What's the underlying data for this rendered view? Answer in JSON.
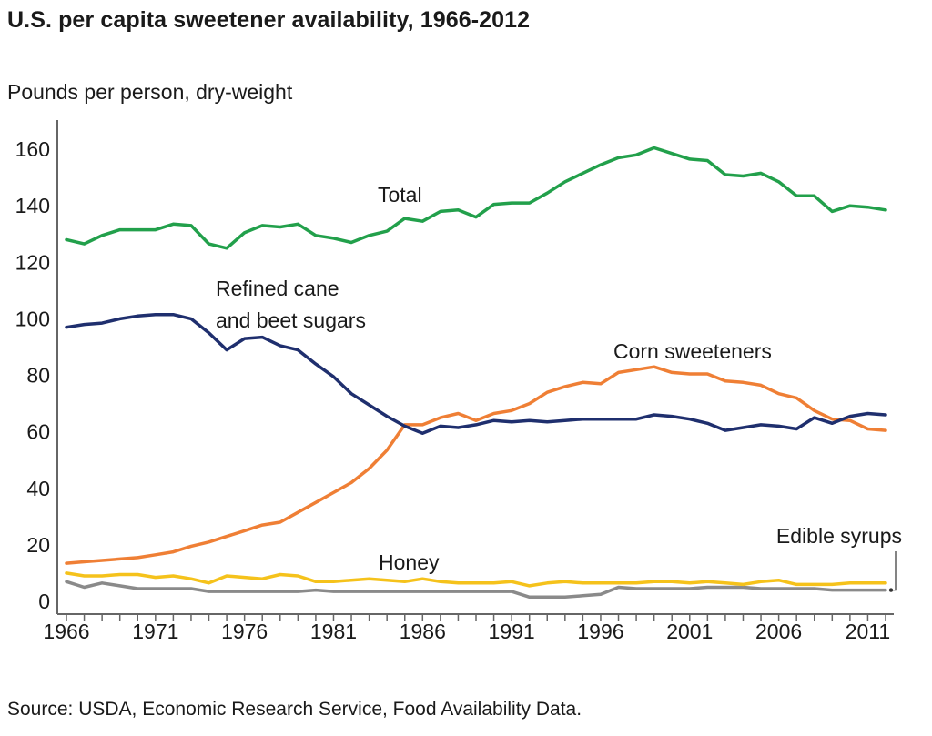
{
  "chart_data": {
    "type": "line",
    "title": "U.S. per capita sweetener availability, 1966-2012",
    "ylabel": "Pounds per person, dry-weight",
    "xlabel": "",
    "source": "Source: USDA, Economic Research Service, Food Availability Data.",
    "xlim": [
      1966,
      2012
    ],
    "ylim": [
      0,
      170
    ],
    "x_ticks": [
      1966,
      1971,
      1976,
      1981,
      1986,
      1991,
      1996,
      2001,
      2006,
      2011
    ],
    "y_ticks": [
      0,
      20,
      40,
      60,
      80,
      100,
      120,
      140,
      160
    ],
    "grid": false,
    "legend": "inline-labels",
    "x": [
      1966,
      1967,
      1968,
      1969,
      1970,
      1971,
      1972,
      1973,
      1974,
      1975,
      1976,
      1977,
      1978,
      1979,
      1980,
      1981,
      1982,
      1983,
      1984,
      1985,
      1986,
      1987,
      1988,
      1989,
      1990,
      1991,
      1992,
      1993,
      1994,
      1995,
      1996,
      1997,
      1998,
      1999,
      2000,
      2001,
      2002,
      2003,
      2004,
      2005,
      2006,
      2007,
      2008,
      2009,
      2010,
      2011,
      2012
    ],
    "series": [
      {
        "name": "Total",
        "color": "#22a04b",
        "label": "Total",
        "values": [
          128,
          126.5,
          129.5,
          131.5,
          131.5,
          131.5,
          133.5,
          133,
          126.5,
          125,
          130.5,
          133,
          132.5,
          133.5,
          129.5,
          128.5,
          127,
          129.5,
          131,
          135.5,
          134.5,
          138,
          138.5,
          136,
          140.5,
          141,
          141,
          144.5,
          148.5,
          151.5,
          154.5,
          157,
          158,
          160.5,
          158.5,
          156.5,
          156,
          151,
          150.5,
          151.5,
          148.5,
          143.5,
          143.5,
          138,
          140,
          139.5,
          138.5
        ]
      },
      {
        "name": "Refined cane and beet sugars",
        "color": "#1f2f6e",
        "label_lines": [
          "Refined cane",
          "and beet sugars"
        ],
        "values": [
          97,
          98,
          98.5,
          100,
          101,
          101.5,
          101.5,
          100,
          95,
          89,
          93,
          93.5,
          90.5,
          89,
          84,
          79.5,
          73.5,
          69.5,
          65.5,
          62,
          59.5,
          62,
          61.5,
          62.5,
          64,
          63.5,
          64,
          63.5,
          64,
          64.5,
          64.5,
          64.5,
          64.5,
          66,
          65.5,
          64.5,
          63,
          60.5,
          61.5,
          62.5,
          62,
          61,
          65,
          63,
          65.5,
          66.5,
          66
        ]
      },
      {
        "name": "Corn sweeteners",
        "color": "#ef7f35",
        "label": "Corn sweeteners",
        "values": [
          13.5,
          14,
          14.5,
          15,
          15.5,
          16.5,
          17.5,
          19.5,
          21,
          23,
          25,
          27,
          28,
          31.5,
          35,
          38.5,
          42,
          47,
          53.5,
          62.5,
          62.5,
          65,
          66.5,
          64,
          66.5,
          67.5,
          70,
          74,
          76,
          77.5,
          77,
          81,
          82,
          83,
          81,
          80.5,
          80.5,
          78,
          77.5,
          76.5,
          73.5,
          72,
          67.5,
          64.5,
          64,
          61,
          60.5
        ]
      },
      {
        "name": "Honey",
        "color": "#f5c21b",
        "label": "Honey",
        "values": [
          10,
          9,
          9,
          9.5,
          9.5,
          8.5,
          9,
          8,
          6.5,
          9,
          8.5,
          8,
          9.5,
          9,
          7,
          7,
          7.5,
          8,
          7.5,
          7,
          8,
          7,
          6.5,
          6.5,
          6.5,
          7,
          5.5,
          6.5,
          7,
          6.5,
          6.5,
          6.5,
          6.5,
          7,
          7,
          6.5,
          7,
          6.5,
          6,
          7,
          7.5,
          6,
          6,
          6,
          6.5,
          6.5,
          6.5
        ]
      },
      {
        "name": "Edible syrups",
        "color": "#8a8a8a",
        "label": "Edible syrups",
        "values": [
          7,
          5,
          6.5,
          5.5,
          4.5,
          4.5,
          4.5,
          4.5,
          3.5,
          3.5,
          3.5,
          3.5,
          3.5,
          3.5,
          4,
          3.5,
          3.5,
          3.5,
          3.5,
          3.5,
          3.5,
          3.5,
          3.5,
          3.5,
          3.5,
          3.5,
          1.5,
          1.5,
          1.5,
          2,
          2.5,
          5,
          4.5,
          4.5,
          4.5,
          4.5,
          5,
          5,
          5,
          4.5,
          4.5,
          4.5,
          4.5,
          4,
          4,
          4,
          4
        ]
      }
    ]
  }
}
